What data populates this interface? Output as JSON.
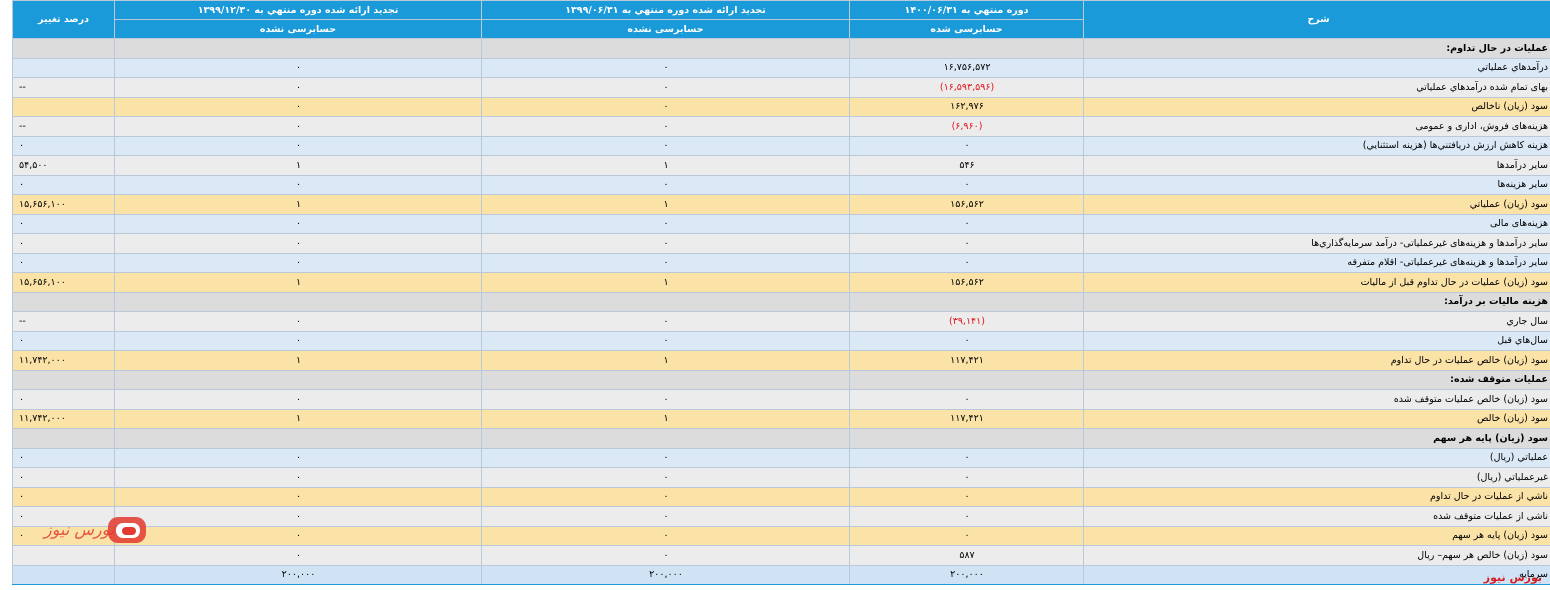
{
  "headers": {
    "desc": "شرح",
    "period1": "دوره منتهي به ۱۴۰۰/۰۶/۳۱",
    "period2": "تجديد ارائه شده دوره منتهي به ۱۳۹۹/۰۶/۳۱",
    "period3": "تجديد ارائه شده دوره منتهي به ۱۳۹۹/۱۲/۳۰",
    "change": "درصد تغيير",
    "audit1": "حسابرسی شده",
    "audit2": "حسابرسی نشده",
    "audit3": "حسابرسی نشده"
  },
  "rows": [
    {
      "type": "section",
      "desc": "عمليات در حال تداوم:",
      "v1": "",
      "v2": "",
      "v3": "",
      "ch": ""
    },
    {
      "type": "blue",
      "desc": "درآمدهاي عملياتي",
      "v1": "۱۶,۷۵۶,۵۷۲",
      "v2": "۰",
      "v3": "۰",
      "ch": ""
    },
    {
      "type": "gray",
      "desc": "بهاى تمام شده درآمدهاي عملياتي",
      "v1": "(۱۶,۵۹۳,۵۹۶)",
      "v2": "۰",
      "v3": "۰",
      "ch": "--",
      "neg": true
    },
    {
      "type": "yellow",
      "desc": "سود (زيان) ناخالص",
      "v1": "۱۶۲,۹۷۶",
      "v2": "۰",
      "v3": "۰",
      "ch": ""
    },
    {
      "type": "gray",
      "desc": "هزينه‏‌هاى فروش، ادارى و عمومى",
      "v1": "(۶,۹۶۰)",
      "v2": "۰",
      "v3": "۰",
      "ch": "--",
      "neg": true
    },
    {
      "type": "blue",
      "desc": "هزينه کاهش ارزش دريافتني‌ها (هزينه استثنايي)",
      "v1": "۰",
      "v2": "۰",
      "v3": "۰",
      "ch": "۰"
    },
    {
      "type": "gray",
      "desc": "ساير درآمدها",
      "v1": "۵۴۶",
      "v2": "۱",
      "v3": "۱",
      "ch": "۵۴,۵۰۰"
    },
    {
      "type": "blue",
      "desc": "سایر هزينه‌ها",
      "v1": "۰",
      "v2": "۰",
      "v3": "۰",
      "ch": "۰"
    },
    {
      "type": "yellow",
      "desc": "سود (زيان) عملياتي",
      "v1": "۱۵۶,۵۶۲",
      "v2": "۱",
      "v3": "۱",
      "ch": "۱۵,۶۵۶,۱۰۰"
    },
    {
      "type": "blue",
      "desc": "هزينه‏‌هاى مالى",
      "v1": "۰",
      "v2": "۰",
      "v3": "۰",
      "ch": "۰"
    },
    {
      "type": "gray",
      "desc": "ساير درآمدها و هزينه‌هاى غيرعملياتى- درآمد سرمايه‌گذاري‌ها",
      "v1": "۰",
      "v2": "۰",
      "v3": "۰",
      "ch": "۰"
    },
    {
      "type": "blue",
      "desc": "ساير درآمدها و هزينه‌هاى غيرعملياتى- اقلام متفرقه",
      "v1": "۰",
      "v2": "۰",
      "v3": "۰",
      "ch": "۰"
    },
    {
      "type": "yellow",
      "desc": "سود (زيان) عمليات در حال تداوم قبل از ماليات",
      "v1": "۱۵۶,۵۶۲",
      "v2": "۱",
      "v3": "۱",
      "ch": "۱۵,۶۵۶,۱۰۰"
    },
    {
      "type": "section",
      "desc": "هزينه ماليات بر درآمد:",
      "v1": "",
      "v2": "",
      "v3": "",
      "ch": ""
    },
    {
      "type": "gray",
      "desc": "سال جاري",
      "v1": "(۳۹,۱۴۱)",
      "v2": "۰",
      "v3": "۰",
      "ch": "--",
      "neg": true
    },
    {
      "type": "blue",
      "desc": "سال‌هاي قبل",
      "v1": "۰",
      "v2": "۰",
      "v3": "۰",
      "ch": "۰"
    },
    {
      "type": "yellow",
      "desc": "سود (زيان) خالص عمليات در حال تداوم",
      "v1": "۱۱۷,۴۲۱",
      "v2": "۱",
      "v3": "۱",
      "ch": "۱۱,۷۴۲,۰۰۰"
    },
    {
      "type": "section",
      "desc": "عمليات متوقف شده:",
      "v1": "",
      "v2": "",
      "v3": "",
      "ch": ""
    },
    {
      "type": "gray",
      "desc": "سود (زيان) خالص عمليات متوقف شده",
      "v1": "۰",
      "v2": "۰",
      "v3": "۰",
      "ch": "۰"
    },
    {
      "type": "yellow",
      "desc": "سود (زيان) خالص",
      "v1": "۱۱۷,۴۲۱",
      "v2": "۱",
      "v3": "۱",
      "ch": "۱۱,۷۴۲,۰۰۰"
    },
    {
      "type": "section",
      "desc": "سود (زيان) پايه هر سهم",
      "v1": "",
      "v2": "",
      "v3": "",
      "ch": ""
    },
    {
      "type": "blue",
      "desc": "عملياتي (ريال)",
      "v1": "۰",
      "v2": "۰",
      "v3": "۰",
      "ch": "۰"
    },
    {
      "type": "gray",
      "desc": "غيرعملياتي (ريال)",
      "v1": "۰",
      "v2": "۰",
      "v3": "۰",
      "ch": "۰"
    },
    {
      "type": "yellow",
      "desc": "ناشي از عمليات در حال تداوم",
      "v1": "۰",
      "v2": "۰",
      "v3": "۰",
      "ch": "۰"
    },
    {
      "type": "gray",
      "desc": "ناشی از عملیات متوقف شده",
      "v1": "۰",
      "v2": "۰",
      "v3": "۰",
      "ch": "۰"
    },
    {
      "type": "yellow",
      "desc": "سود (زيان) پايه هر سهم",
      "v1": "۰",
      "v2": "۰",
      "v3": "۰",
      "ch": "۰"
    },
    {
      "type": "gray",
      "desc": "سود (زيان) خالص هر سهم– ريال",
      "v1": "۵۸۷",
      "v2": "۰",
      "v3": "۰",
      "ch": ""
    }
  ],
  "footer": {
    "desc": "سرمايه",
    "v1": "۲۰۰,۰۰۰",
    "v2": "۲۰۰,۰۰۰",
    "v3": "۲۰۰,۰۰۰",
    "ch": ""
  },
  "brand": {
    "watermark": "بورس نیوز",
    "logo_text": "بورس نیوز",
    "accent": "#d41f24",
    "header_color": "#1a9ad8"
  }
}
